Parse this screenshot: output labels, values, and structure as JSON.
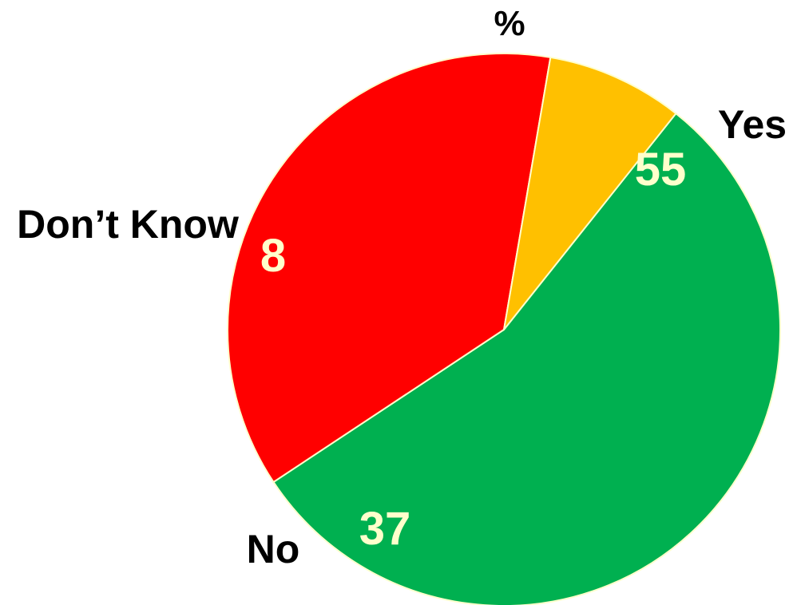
{
  "chart_data": {
    "type": "pie",
    "title": "%",
    "slices": [
      {
        "label": "Yes",
        "value": 55,
        "color": "#00B050"
      },
      {
        "label": "No",
        "value": 37,
        "color": "#FF0000"
      },
      {
        "label": "Don’t Know",
        "value": 8,
        "color": "#FFC000"
      }
    ],
    "value_label_color": "#FFFFCC",
    "slice_border_color": "#FFFFCC"
  }
}
